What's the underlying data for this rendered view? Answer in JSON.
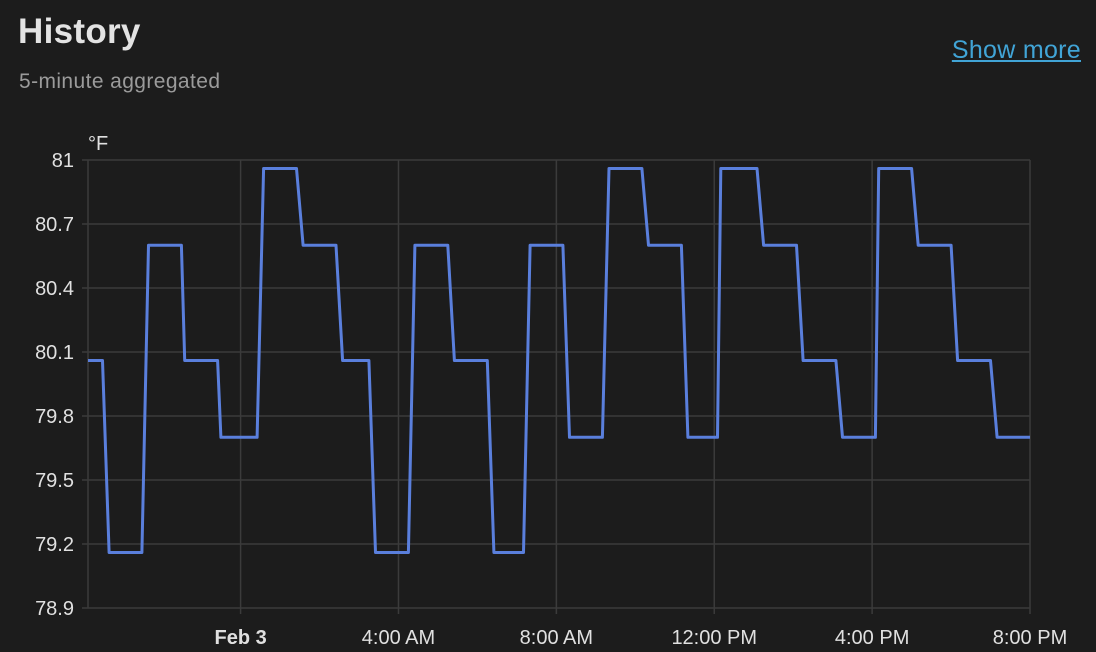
{
  "header": {
    "title": "History",
    "subtitle": "5-minute aggregated",
    "show_more": "Show more"
  },
  "colors": {
    "background": "#1c1c1c",
    "line": "#5a7fdc",
    "grid": "#3b3b3b",
    "link": "#41a4d6"
  },
  "chart_data": {
    "type": "line",
    "title": "",
    "ylabel": "°F",
    "xlabel": "",
    "ylim": [
      78.9,
      81
    ],
    "yticks": [
      "81",
      "80.7",
      "80.4",
      "80.1",
      "79.8",
      "79.5",
      "79.2",
      "78.9"
    ],
    "xlim": [
      "Feb 2 20:08",
      "Feb 3 20:00"
    ],
    "xticks": [
      {
        "label": "Feb 3",
        "at": "Feb 3 00:00",
        "bold": true
      },
      {
        "label": "4:00 AM",
        "at": "Feb 3 04:00",
        "bold": false
      },
      {
        "label": "8:00 AM",
        "at": "Feb 3 08:00",
        "bold": false
      },
      {
        "label": "12:00 PM",
        "at": "Feb 3 12:00",
        "bold": false
      },
      {
        "label": "4:00 PM",
        "at": "Feb 3 16:00",
        "bold": false
      },
      {
        "label": "8:00 PM",
        "at": "Feb 3 20:00",
        "bold": false
      }
    ],
    "grid": true,
    "series": [
      {
        "points": [
          [
            "Feb 2 20:08",
            80.06
          ],
          [
            "Feb 2 20:30",
            80.06
          ],
          [
            "Feb 2 20:40",
            79.16
          ],
          [
            "Feb 2 21:30",
            79.16
          ],
          [
            "Feb 2 21:40",
            80.6
          ],
          [
            "Feb 2 22:30",
            80.6
          ],
          [
            "Feb 2 22:35",
            80.06
          ],
          [
            "Feb 2 23:25",
            80.06
          ],
          [
            "Feb 2 23:30",
            79.7
          ],
          [
            "Feb 3 00:25",
            79.7
          ],
          [
            "Feb 3 00:35",
            80.96
          ],
          [
            "Feb 3 01:25",
            80.96
          ],
          [
            "Feb 3 01:35",
            80.6
          ],
          [
            "Feb 3 02:25",
            80.6
          ],
          [
            "Feb 3 02:35",
            80.06
          ],
          [
            "Feb 3 03:15",
            80.06
          ],
          [
            "Feb 3 03:25",
            79.16
          ],
          [
            "Feb 3 04:15",
            79.16
          ],
          [
            "Feb 3 04:25",
            80.6
          ],
          [
            "Feb 3 05:15",
            80.6
          ],
          [
            "Feb 3 05:25",
            80.06
          ],
          [
            "Feb 3 06:15",
            80.06
          ],
          [
            "Feb 3 06:25",
            79.16
          ],
          [
            "Feb 3 07:10",
            79.16
          ],
          [
            "Feb 3 07:20",
            80.6
          ],
          [
            "Feb 3 08:10",
            80.6
          ],
          [
            "Feb 3 08:20",
            79.7
          ],
          [
            "Feb 3 09:10",
            79.7
          ],
          [
            "Feb 3 09:20",
            80.96
          ],
          [
            "Feb 3 10:10",
            80.96
          ],
          [
            "Feb 3 10:20",
            80.6
          ],
          [
            "Feb 3 11:10",
            80.6
          ],
          [
            "Feb 3 11:20",
            79.7
          ],
          [
            "Feb 3 12:05",
            79.7
          ],
          [
            "Feb 3 12:10",
            80.96
          ],
          [
            "Feb 3 13:05",
            80.96
          ],
          [
            "Feb 3 13:15",
            80.6
          ],
          [
            "Feb 3 14:05",
            80.6
          ],
          [
            "Feb 3 14:15",
            80.06
          ],
          [
            "Feb 3 15:05",
            80.06
          ],
          [
            "Feb 3 15:15",
            79.7
          ],
          [
            "Feb 3 16:05",
            79.7
          ],
          [
            "Feb 3 16:10",
            80.96
          ],
          [
            "Feb 3 17:00",
            80.96
          ],
          [
            "Feb 3 17:10",
            80.6
          ],
          [
            "Feb 3 18:00",
            80.6
          ],
          [
            "Feb 3 18:10",
            80.06
          ],
          [
            "Feb 3 19:00",
            80.06
          ],
          [
            "Feb 3 19:10",
            79.7
          ],
          [
            "Feb 3 20:00",
            79.7
          ]
        ]
      }
    ]
  }
}
